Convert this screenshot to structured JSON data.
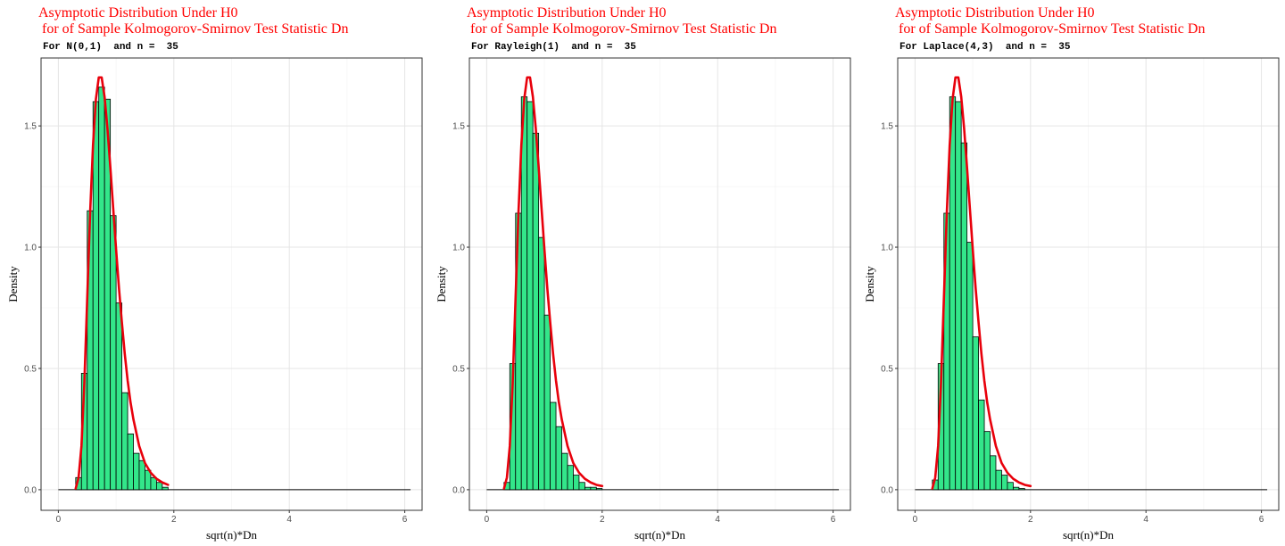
{
  "colors": {
    "histogram_fill": "#33e68a",
    "histogram_stroke": "#000000",
    "density_curve": "#e8000b",
    "title": "#ff0000",
    "grid_major": "#e5e5e5",
    "grid_minor": "#f2f2f2",
    "panel_border": "#333333"
  },
  "chart_data": [
    {
      "type": "bar",
      "title_line1": "Asymptotic Distribution Under H0",
      "title_line2": " for of Sample Kolmogorov-Smirnov Test Statistic Dn",
      "subtitle": "For N(0,1)  and n =  35",
      "xlabel": "sqrt(n)*Dn",
      "ylabel": "Density",
      "xlim": [
        -0.3,
        6.3
      ],
      "ylim": [
        -0.085,
        1.78
      ],
      "x_ticks": [
        "0",
        "2",
        "4",
        "6"
      ],
      "y_ticks": [
        "0.0",
        "0.5",
        "1.0",
        "1.5"
      ],
      "grid": true,
      "histogram": {
        "bin_width": 0.1,
        "bin_starts": [
          0.3,
          0.4,
          0.5,
          0.6,
          0.7,
          0.8,
          0.9,
          1.0,
          1.1,
          1.2,
          1.3,
          1.4,
          1.5,
          1.6,
          1.7,
          1.8
        ],
        "density": [
          0.05,
          0.48,
          1.15,
          1.6,
          1.66,
          1.61,
          1.13,
          0.77,
          0.4,
          0.23,
          0.15,
          0.12,
          0.08,
          0.05,
          0.03,
          0.01
        ]
      },
      "baseline_x": [
        0,
        6.1
      ],
      "density_curve": {
        "x": [
          0.3,
          0.35,
          0.4,
          0.45,
          0.5,
          0.55,
          0.6,
          0.65,
          0.7,
          0.75,
          0.8,
          0.85,
          0.9,
          0.95,
          1.0,
          1.05,
          1.1,
          1.15,
          1.2,
          1.25,
          1.3,
          1.4,
          1.5,
          1.6,
          1.7,
          1.8,
          1.9
        ],
        "y": [
          0.005,
          0.05,
          0.18,
          0.44,
          0.79,
          1.14,
          1.42,
          1.61,
          1.7,
          1.7,
          1.62,
          1.49,
          1.33,
          1.16,
          0.99,
          0.83,
          0.69,
          0.56,
          0.45,
          0.36,
          0.29,
          0.18,
          0.11,
          0.07,
          0.045,
          0.03,
          0.02
        ]
      }
    },
    {
      "type": "bar",
      "title_line1": "Asymptotic Distribution Under H0",
      "title_line2": " for of Sample Kolmogorov-Smirnov Test Statistic Dn",
      "subtitle": "For Rayleigh(1)  and n =  35",
      "xlabel": "sqrt(n)*Dn",
      "ylabel": "Density",
      "xlim": [
        -0.3,
        6.3
      ],
      "ylim": [
        -0.085,
        1.78
      ],
      "x_ticks": [
        "0",
        "2",
        "4",
        "6"
      ],
      "y_ticks": [
        "0.0",
        "0.5",
        "1.0",
        "1.5"
      ],
      "grid": true,
      "histogram": {
        "bin_width": 0.1,
        "bin_starts": [
          0.3,
          0.4,
          0.5,
          0.6,
          0.7,
          0.8,
          0.9,
          1.0,
          1.1,
          1.2,
          1.3,
          1.4,
          1.5,
          1.6,
          1.7,
          1.8,
          1.9
        ],
        "density": [
          0.03,
          0.52,
          1.14,
          1.62,
          1.6,
          1.47,
          1.04,
          0.72,
          0.36,
          0.26,
          0.15,
          0.1,
          0.06,
          0.03,
          0.01,
          0.01,
          0.005
        ]
      },
      "baseline_x": [
        0,
        6.1
      ],
      "density_curve": {
        "x": [
          0.3,
          0.35,
          0.4,
          0.45,
          0.5,
          0.55,
          0.6,
          0.65,
          0.7,
          0.75,
          0.8,
          0.85,
          0.9,
          0.95,
          1.0,
          1.05,
          1.1,
          1.15,
          1.2,
          1.25,
          1.3,
          1.4,
          1.5,
          1.6,
          1.7,
          1.8,
          1.9,
          2.0
        ],
        "y": [
          0.005,
          0.05,
          0.18,
          0.44,
          0.79,
          1.14,
          1.42,
          1.61,
          1.7,
          1.7,
          1.62,
          1.49,
          1.33,
          1.16,
          0.99,
          0.83,
          0.69,
          0.56,
          0.45,
          0.36,
          0.29,
          0.18,
          0.11,
          0.07,
          0.045,
          0.03,
          0.02,
          0.015
        ]
      }
    },
    {
      "type": "bar",
      "title_line1": "Asymptotic Distribution Under H0",
      "title_line2": " for of Sample Kolmogorov-Smirnov Test Statistic Dn",
      "subtitle": "For Laplace(4,3)  and n =  35",
      "xlabel": "sqrt(n)*Dn",
      "ylabel": "Density",
      "xlim": [
        -0.3,
        6.3
      ],
      "ylim": [
        -0.085,
        1.78
      ],
      "x_ticks": [
        "0",
        "2",
        "4",
        "6"
      ],
      "y_ticks": [
        "0.0",
        "0.5",
        "1.0",
        "1.5"
      ],
      "grid": true,
      "histogram": {
        "bin_width": 0.1,
        "bin_starts": [
          0.3,
          0.4,
          0.5,
          0.6,
          0.7,
          0.8,
          0.9,
          1.0,
          1.1,
          1.2,
          1.3,
          1.4,
          1.5,
          1.6,
          1.7,
          1.8
        ],
        "density": [
          0.04,
          0.52,
          1.14,
          1.62,
          1.6,
          1.43,
          1.02,
          0.63,
          0.37,
          0.24,
          0.14,
          0.08,
          0.06,
          0.03,
          0.01,
          0.005
        ]
      },
      "baseline_x": [
        0,
        6.1
      ],
      "density_curve": {
        "x": [
          0.3,
          0.35,
          0.4,
          0.45,
          0.5,
          0.55,
          0.6,
          0.65,
          0.7,
          0.75,
          0.8,
          0.85,
          0.9,
          0.95,
          1.0,
          1.05,
          1.1,
          1.15,
          1.2,
          1.25,
          1.3,
          1.4,
          1.5,
          1.6,
          1.7,
          1.8,
          1.9,
          2.0
        ],
        "y": [
          0.005,
          0.05,
          0.18,
          0.44,
          0.79,
          1.14,
          1.42,
          1.61,
          1.7,
          1.7,
          1.62,
          1.49,
          1.33,
          1.16,
          0.99,
          0.83,
          0.69,
          0.56,
          0.45,
          0.36,
          0.29,
          0.18,
          0.11,
          0.07,
          0.045,
          0.03,
          0.02,
          0.015
        ]
      }
    }
  ]
}
